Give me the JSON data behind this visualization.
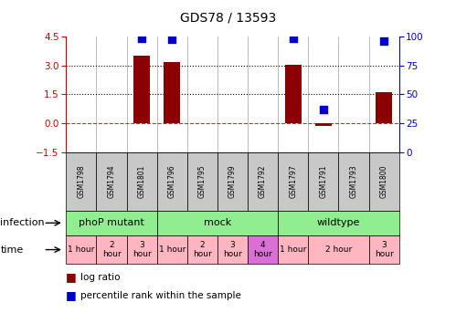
{
  "title": "GDS78 / 13593",
  "samples": [
    "GSM1798",
    "GSM1794",
    "GSM1801",
    "GSM1796",
    "GSM1795",
    "GSM1799",
    "GSM1792",
    "GSM1797",
    "GSM1791",
    "GSM1793",
    "GSM1800"
  ],
  "log_ratios": [
    0.0,
    0.0,
    3.5,
    3.2,
    0.0,
    0.0,
    0.0,
    3.05,
    -0.15,
    0.0,
    1.6
  ],
  "percentile_ranks_pct": [
    null,
    null,
    99.0,
    98.0,
    null,
    null,
    null,
    99.0,
    37.0,
    null,
    96.0
  ],
  "ylim_left": [
    -1.5,
    4.5
  ],
  "ylim_right": [
    0,
    100
  ],
  "yticks_left": [
    -1.5,
    0,
    1.5,
    3,
    4.5
  ],
  "yticks_right": [
    0,
    25,
    50,
    75,
    100
  ],
  "hlines_dotted": [
    1.5,
    3.0
  ],
  "hline_dashed": 0.0,
  "infection_groups": [
    {
      "label": "phoP mutant",
      "start": 0,
      "end": 3,
      "color": "#90EE90"
    },
    {
      "label": "mock",
      "start": 3,
      "end": 7,
      "color": "#90EE90"
    },
    {
      "label": "wildtype",
      "start": 7,
      "end": 11,
      "color": "#90EE90"
    }
  ],
  "time_groups": [
    {
      "label": "1 hour",
      "start": 0,
      "end": 1,
      "color": "#FFB6C1"
    },
    {
      "label": "2\nhour",
      "start": 1,
      "end": 2,
      "color": "#FFB6C1"
    },
    {
      "label": "3\nhour",
      "start": 2,
      "end": 3,
      "color": "#FFB6C1"
    },
    {
      "label": "1 hour",
      "start": 3,
      "end": 4,
      "color": "#FFB6C1"
    },
    {
      "label": "2\nhour",
      "start": 4,
      "end": 5,
      "color": "#FFB6C1"
    },
    {
      "label": "3\nhour",
      "start": 5,
      "end": 6,
      "color": "#FFB6C1"
    },
    {
      "label": "4\nhour",
      "start": 6,
      "end": 7,
      "color": "#DA70D6"
    },
    {
      "label": "1 hour",
      "start": 7,
      "end": 8,
      "color": "#FFB6C1"
    },
    {
      "label": "2 hour",
      "start": 8,
      "end": 10,
      "color": "#FFB6C1"
    },
    {
      "label": "3\nhour",
      "start": 10,
      "end": 11,
      "color": "#FFB6C1"
    }
  ],
  "bar_color": "#8B0000",
  "dot_color": "#0000CD",
  "bar_width": 0.55,
  "dot_size": 40,
  "background_color": "#ffffff",
  "left_axis_color": "#CC0000",
  "right_axis_color": "#0000CD",
  "sample_bg_color": "#C8C8C8",
  "title_fontsize": 10,
  "tick_fontsize": 7.5,
  "sample_fontsize": 5.5,
  "infection_fontsize": 8,
  "time_fontsize": 6.5,
  "legend_fontsize": 7.5
}
